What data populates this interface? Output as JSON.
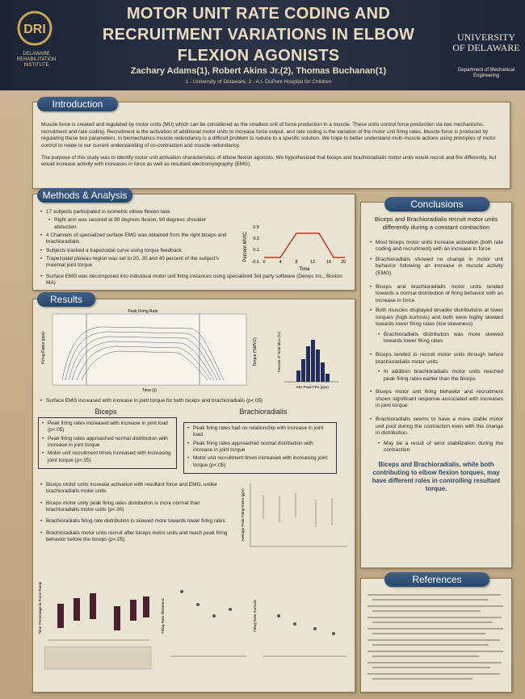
{
  "header": {
    "logo_left": "DRI",
    "logo_left_caption": "DELAWARE REHABILITATION INSTITUTE",
    "title": [
      "MOTOR UNIT RATE CODING AND",
      "RECRUITMENT VARIATIONS IN ELBOW",
      "FLEXION AGONISTS"
    ],
    "authors": "Zachary Adams(1), Robert Akins Jr.(2), Thomas Buchanan(1)",
    "affiliations": "1 - University of Delaware,  2 - A.I. DuPont Hospital for Children",
    "logo_right": "UNIVERSITY OF DELAWARE",
    "department": "Department of Mechanical Engineering"
  },
  "introduction": {
    "heading": "Introduction",
    "paragraphs": [
      "Muscle force is created and regulated by motor units (MU) which can be considered as the smallest unit of force production in a muscle. These units control force production via two mechanisms: recruitment and rate coding. Recruitment is the activation of additional motor units to increase force output, and rate coding is the variation of the motor unit firing rates. Muscle force is produced by regulating these two parameters. In biomechanics muscle redundancy is a difficult problem to reduce to a specific solution. We hope to better understand multi-muscle actions using principles of motor control to relate to our current understanding of co-contraction and muscle redundancy.",
      "The purpose of this study was to identify motor unit activation characteristics of elbow flexion agonists. We hypothesized that biceps and brachioradialis motor units would recruit and fire differently, but would increase activity with increases in force as well as resultant electromyography (EMG)."
    ]
  },
  "methods": {
    "heading": "Methods & Analysis",
    "bullets": [
      "17 subjects participated in isometric elbow flexion task",
      "Right arm was secured at 90 degrees flexion, 90 degrees shoulder abduction",
      "4 Channels of specialized surface EMG was obtained from the right biceps and brachioradialis",
      "Subjects tracked a trapezoidal curve using torque feedback",
      "Trapezoidal plateau region was set to 20, 30 and 40 percent of the subject's maximal joint torque",
      "Surface EMG was decomposed into individual motor unit firing instances using specialized 3rd party software (Delsys Inc., Boston MA)"
    ],
    "figure": {
      "y_label": "Percent MVIC",
      "x_label": "Time",
      "yticks": [
        "0.5",
        "0.3",
        "0.1",
        "-0.1"
      ],
      "xticks": [
        "0",
        "4",
        "8",
        "12",
        "16",
        "20"
      ]
    }
  },
  "results": {
    "heading": "Results",
    "figure_labels": {
      "title": "Peak Firing Rate",
      "y_left": "Firing Rates (pps)",
      "x": "Time (s)",
      "y_right": "Torque (%MVC)",
      "hist_y": "Percent of Total MUs (%)",
      "hist_x": "MU Peak FRs (pps)"
    },
    "emg_bullet": "Surface EMG increased with increase in joint torque for both biceps and brachioradialis (p<.05)",
    "biceps": {
      "title": "Biceps",
      "bullets": [
        "Peak firing rates increased with increase in joint load (p<.05)",
        "Peak firing rates approached normal distribution with increase in joint torque",
        "Motor unit recruitment times increased with increasing joint torque (p<.05)"
      ]
    },
    "brachioradialis": {
      "title": "Brachioradialis",
      "bullets": [
        "Peak firing rates had no relationship with increase in joint load",
        "Peak firing rates approached normal distribution with increase in joint torque",
        "Motor unit recruitment times increased with increasing joint torque (p<.05)"
      ]
    },
    "bullets": [
      "Biceps motor units increase activation with resultant force and EMG, unlike brachioradialis motor units",
      "Biceps motor unity peak firing rates distribution is more normal than brachioradialis motor units (p<.05)",
      "Brachioradialis firing rate distribution is skewed more towards lower firing rates",
      "Brachioradialis motor units recruit after biceps motor units and reach peak firing behavior before the biceps (p<.05)"
    ],
    "chart_labels": {
      "avg_peak": "Average Peak Firing Rates (pps)",
      "time_pct": "Time Percentage in Force Ramp",
      "skewness": "Firing Rate Skewness",
      "kurtosis": "Firing Rate Kurtosis"
    }
  },
  "conclusions": {
    "heading": "Conclusions",
    "lead": "Biceps and Brachioradialis recruit motor units differently during a constant contraction",
    "bullets": [
      "Most biceps motor units increase activation (both rate coding and recruitment) with an increase in force",
      "Brachioradialis showed no change in motor unit behavior following an increase in muscle activity (EMG)",
      "Biceps and brachioradialis motor units tended towards a normal distribution of firing behavior with an increase in force",
      "Both muscles displayed broader distributions at lower torques (high kurtosis) and both were highly skewed towards lower firing rates (low skewness)",
      "Brachioradialis distribution was more skewed towards lower firing rates",
      "Biceps tended to recruit motor units through before brachioradialis motor units",
      "In addition brachioradialis motor units reached peak firing rates earlier than the biceps",
      "Biceps motor unit firing behavior and recruitment shows significant response associated with increases in joint torque",
      "Brachioradialis seems to have a more stable motor unit pool during the contraction even with the change in distribution.",
      "May be a result of wrist stabilization during the contraction"
    ],
    "closing": "Biceps and Brachioradialis, while both contributing to elbow flexion torques, may have different roles in controlling resultant torque."
  },
  "references": {
    "heading": "References"
  }
}
